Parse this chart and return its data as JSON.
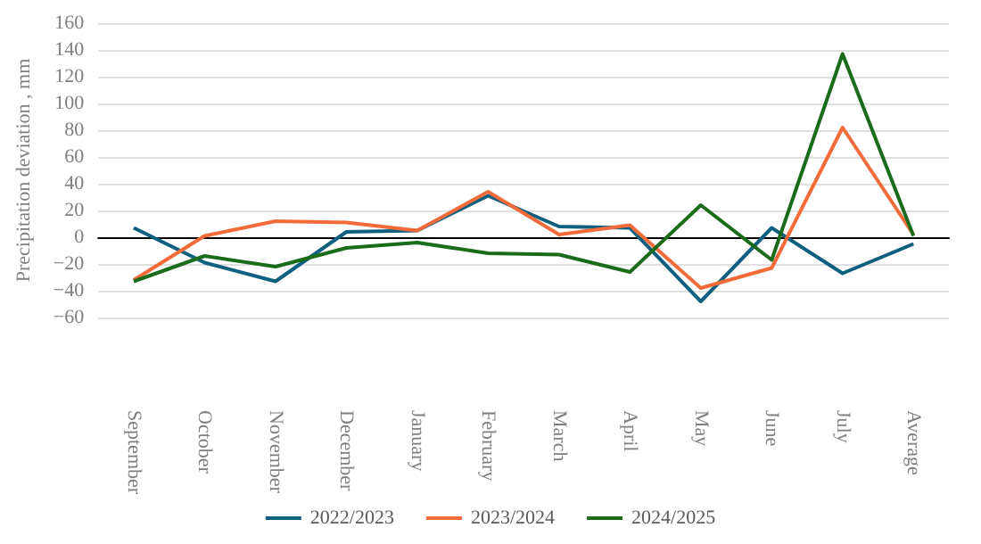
{
  "chart_data": {
    "type": "line",
    "ylabel": "Precipitation deviation , mm",
    "categories": [
      "September",
      "October",
      "November",
      "December",
      "January",
      "February",
      "March",
      "April",
      "May",
      "June",
      "July",
      "Average"
    ],
    "series": [
      {
        "name": "2022/2023",
        "color": "#0f5f7f",
        "values": [
          7,
          -19,
          -33,
          4,
          5,
          31,
          8,
          7,
          -48,
          7,
          -27,
          -5
        ]
      },
      {
        "name": "2023/2024",
        "color": "#f26b38",
        "values": [
          -32,
          1,
          12,
          11,
          5,
          34,
          2,
          9,
          -38,
          -23,
          82,
          2
        ]
      },
      {
        "name": "2024/2025",
        "color": "#1a6b1a",
        "values": [
          -33,
          -14,
          -22,
          -8,
          -4,
          -12,
          -13,
          -26,
          24,
          -17,
          137,
          1
        ]
      }
    ],
    "ylim": [
      -60,
      160
    ],
    "yticks": [
      {
        "value": -60,
        "label": "−60"
      },
      {
        "value": -40,
        "label": "−40"
      },
      {
        "value": -20,
        "label": "−20"
      },
      0,
      20,
      40,
      60,
      80,
      100,
      120,
      140,
      160
    ],
    "grid": "y",
    "legend": "bottom",
    "marker": "none",
    "line_style": "solid"
  }
}
